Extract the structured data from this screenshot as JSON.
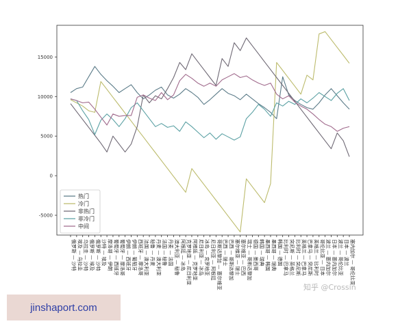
{
  "chart_data": {
    "type": "line",
    "ylim": [
      -7500,
      19000
    ],
    "yticks": [
      -5000,
      0,
      5000,
      10000,
      15000
    ],
    "grid": false,
    "legend_position": "lower-left",
    "categories": [
      "俄罗斯 — 沙特",
      "埃及 — 乌拉圭",
      "乌拉圭 — 沙特",
      "俄罗斯 — 埃及",
      "俄罗斯 — 沙特",
      "沙特 — 埃及",
      "摩洛哥 — 伊朗",
      "葡萄牙 — 西班牙",
      "葡萄牙 — 摩洛哥",
      "伊朗 — 西班牙",
      "伊朗 — 葡萄牙",
      "西班牙 — 摩洛哥",
      "法国 — 澳大利亚",
      "秘鲁 — 丹麦",
      "丹麦 — 澳大利亚",
      "法国 — 秘鲁",
      "丹麦 — 法国",
      "澳大利亚 — 秘鲁",
      "阿根廷 — 冰岛",
      "克罗地亚 — 尼日利亚",
      "阿根廷 — 克罗地亚",
      "尼日利亚 — 冰岛",
      "冰岛 — 克罗地亚",
      "尼日利亚 — 阿根廷",
      "哥斯达黎加 — 塞尔维亚",
      "巴西 — 瑞士",
      "巴西 — 哥斯达黎加",
      "塞尔维亚 — 瑞士",
      "塞尔维亚 — 巴西",
      "瑞士 — 哥斯达黎加",
      "德国 — 墨西哥",
      "韩国 — 瑞典",
      "墨西哥 — 韩国",
      "墨西哥 — 瑞典",
      "韩国 — 德国",
      "比利时 — 巴拿马",
      "突尼斯 — 英格兰",
      "比利时 — 突尼斯",
      "英格兰 — 巴拿马",
      "巴拿马 — 突尼斯",
      "英格兰 — 比利时",
      "哥伦比亚 — 日本",
      "波兰 — 塞内加尔",
      "日本 — 塞内加尔",
      "波兰 — 哥伦比亚",
      "日本 — 波兰",
      "塞内加尔 — 哥伦比亚"
    ],
    "series": [
      {
        "name": "热门",
        "color": "#5b7b88",
        "values": [
          10500,
          11000,
          11200,
          12500,
          13800,
          12800,
          12000,
          11300,
          10500,
          11000,
          11500,
          10500,
          9700,
          10200,
          10800,
          11200,
          10200,
          9800,
          10300,
          11000,
          10500,
          9900,
          9000,
          9600,
          10300,
          11000,
          10400,
          10100,
          9600,
          10300,
          9700,
          9100,
          8600,
          8000,
          7200,
          12500,
          10200,
          9500,
          9000,
          8600,
          8400,
          9200,
          10200,
          11000,
          10100,
          9200,
          8400
        ]
      },
      {
        "name": "冷门",
        "color": "#bcbb6c",
        "values": [
          9600,
          9200,
          8800,
          8200,
          8000,
          11900,
          10900,
          9900,
          8900,
          7900,
          6900,
          5900,
          4900,
          3900,
          2900,
          1900,
          900,
          -100,
          -1100,
          -2100,
          900,
          -100,
          -1100,
          -2100,
          -3100,
          -4100,
          -5100,
          -6100,
          -7100,
          -400,
          -1400,
          -2400,
          -3400,
          -1000,
          14300,
          13300,
          12300,
          11300,
          10300,
          12700,
          12100,
          17900,
          18200,
          17200,
          16200,
          15200,
          14200
        ]
      },
      {
        "name": "非热门",
        "color": "#6e6874",
        "values": [
          9100,
          8100,
          7100,
          6100,
          5100,
          4100,
          3000,
          5000,
          4000,
          3000,
          4000,
          6200,
          10200,
          9200,
          10100,
          9700,
          11000,
          12400,
          14300,
          13400,
          15400,
          14400,
          13400,
          12400,
          11400,
          14800,
          13800,
          16800,
          15800,
          17400,
          16400,
          15400,
          14400,
          13400,
          12400,
          11400,
          10400,
          9400,
          8400,
          7400,
          6400,
          5400,
          4400,
          3400,
          5400,
          4400,
          2400
        ]
      },
      {
        "name": "非冷门",
        "color": "#5aa0a3",
        "values": [
          9700,
          9500,
          8200,
          7100,
          5200,
          7000,
          7800,
          7100,
          6200,
          7200,
          8600,
          9200,
          8200,
          7200,
          6200,
          6600,
          6100,
          6300,
          5600,
          6800,
          6200,
          5500,
          4800,
          5400,
          4600,
          5300,
          4900,
          4500,
          4900,
          7200,
          8000,
          9000,
          8400,
          7500,
          9200,
          8800,
          9400,
          9000,
          9700,
          9200,
          9800,
          10500,
          10000,
          9500,
          10400,
          11000,
          9500
        ]
      },
      {
        "name": "中间",
        "color": "#a06a8c",
        "values": [
          9700,
          9500,
          9200,
          9300,
          8400,
          7400,
          6400,
          7800,
          7500,
          7600,
          7600,
          9900,
          10200,
          9800,
          9500,
          10500,
          9600,
          10200,
          12000,
          12800,
          12300,
          11700,
          11300,
          11700,
          11300,
          12100,
          12500,
          12900,
          12400,
          12600,
          12100,
          11700,
          11400,
          11700,
          10300,
          9700,
          10100,
          9300,
          8800,
          8400,
          7800,
          7100,
          6500,
          6200,
          5600,
          6000,
          6200
        ]
      }
    ]
  },
  "watermark": {
    "text": "知乎 @Crossin"
  },
  "banner": {
    "text": "jinshaport.com"
  }
}
